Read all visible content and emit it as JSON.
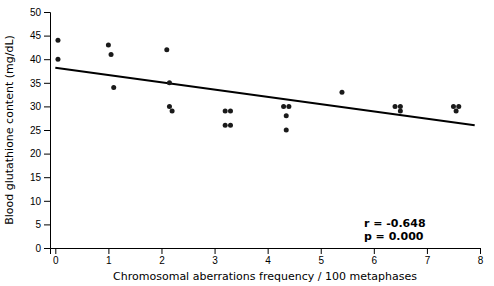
{
  "chart_data": {
    "type": "scatter",
    "xlabel": "Chromosomal aberrations frequency / 100 metaphases",
    "ylabel": "Blood glutathione content (mg/dL)",
    "annotation": "r = -0.648\np = 0.000",
    "series": [
      {
        "type": "scatter",
        "color": "#1a1a1a",
        "x": [
          0.05,
          0.05,
          1.0,
          1.05,
          1.1,
          2.1,
          2.15,
          2.15,
          2.2,
          3.2,
          3.2,
          3.3,
          3.3,
          4.3,
          4.35,
          4.35,
          4.4,
          5.4,
          6.4,
          6.5,
          6.5,
          7.5,
          7.55,
          7.6
        ],
        "values": [
          44,
          40,
          43,
          41,
          34,
          42,
          35,
          30,
          29,
          29,
          26,
          29,
          26,
          30,
          28,
          25,
          30,
          33,
          30,
          29,
          30,
          30,
          29,
          30
        ]
      },
      {
        "type": "line",
        "color": "#000000",
        "x": [
          0,
          7.9
        ],
        "values": [
          38.2,
          26.0
        ]
      }
    ],
    "xlim": [
      -0.1,
      8
    ],
    "ylim": [
      0,
      50
    ],
    "xticks": [
      0,
      1,
      2,
      3,
      4,
      5,
      6,
      7,
      8
    ],
    "yticks": [
      0,
      5,
      10,
      15,
      20,
      25,
      30,
      35,
      40,
      45,
      50
    ]
  }
}
